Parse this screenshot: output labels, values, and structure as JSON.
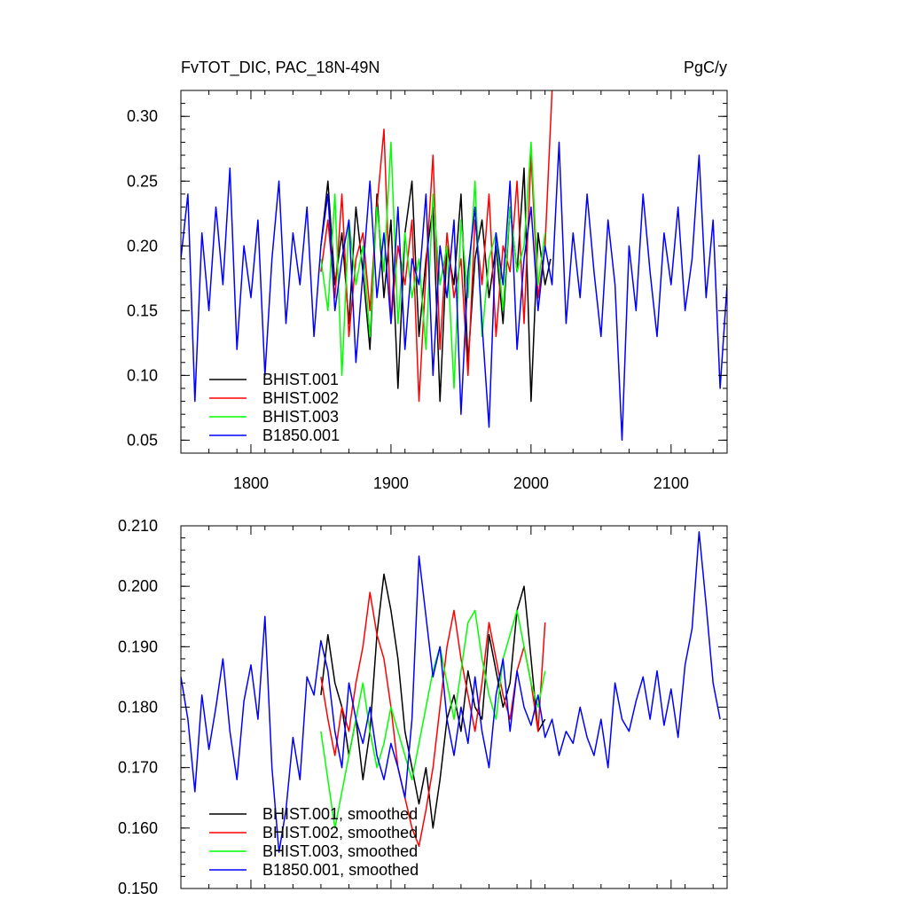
{
  "title_left": "FvTOT_DIC, PAC_18N-49N",
  "title_right": "PgC/y",
  "chart_data": [
    {
      "type": "line",
      "xlim": [
        1750,
        2140
      ],
      "ylim": [
        0.04,
        0.32
      ],
      "xticks": [
        1800,
        1900,
        2000,
        2100
      ],
      "xtick_labels": [
        "1800",
        "1900",
        "2000",
        "2100"
      ],
      "yticks": [
        0.05,
        0.1,
        0.15,
        0.2,
        0.25,
        0.3
      ],
      "ytick_labels": [
        "0.05",
        "0.10",
        "0.15",
        "0.20",
        "0.25",
        "0.30"
      ],
      "legend_position": "bottom-left",
      "series": [
        {
          "name": "BHIST.001",
          "color": "#000000",
          "x": [
            1850,
            1855,
            1860,
            1865,
            1870,
            1875,
            1880,
            1885,
            1890,
            1895,
            1900,
            1905,
            1910,
            1915,
            1920,
            1925,
            1930,
            1935,
            1940,
            1945,
            1950,
            1955,
            1960,
            1965,
            1970,
            1975,
            1980,
            1985,
            1990,
            1995,
            2000,
            2005,
            2010,
            2014
          ],
          "y": [
            0.2,
            0.25,
            0.17,
            0.21,
            0.14,
            0.23,
            0.18,
            0.12,
            0.24,
            0.16,
            0.22,
            0.09,
            0.21,
            0.25,
            0.13,
            0.19,
            0.23,
            0.08,
            0.2,
            0.17,
            0.24,
            0.11,
            0.19,
            0.22,
            0.16,
            0.2,
            0.14,
            0.23,
            0.18,
            0.26,
            0.08,
            0.21,
            0.17,
            0.19
          ]
        },
        {
          "name": "BHIST.002",
          "color": "#ff0000",
          "x": [
            1850,
            1855,
            1860,
            1865,
            1870,
            1875,
            1880,
            1885,
            1890,
            1895,
            1900,
            1905,
            1910,
            1915,
            1920,
            1925,
            1930,
            1935,
            1940,
            1945,
            1950,
            1955,
            1960,
            1965,
            1970,
            1975,
            1980,
            1985,
            1990,
            1995,
            2000,
            2005,
            2010,
            2015
          ],
          "y": [
            0.18,
            0.22,
            0.16,
            0.24,
            0.13,
            0.19,
            0.21,
            0.15,
            0.23,
            0.29,
            0.14,
            0.2,
            0.17,
            0.22,
            0.08,
            0.18,
            0.27,
            0.12,
            0.21,
            0.16,
            0.19,
            0.1,
            0.22,
            0.17,
            0.24,
            0.13,
            0.2,
            0.18,
            0.25,
            0.14,
            0.27,
            0.16,
            0.2,
            0.32
          ]
        },
        {
          "name": "BHIST.003",
          "color": "#00ff00",
          "x": [
            1850,
            1855,
            1860,
            1865,
            1870,
            1875,
            1880,
            1885,
            1890,
            1895,
            1900,
            1905,
            1910,
            1915,
            1920,
            1925,
            1930,
            1935,
            1940,
            1945,
            1950,
            1955,
            1960,
            1965,
            1970,
            1975,
            1980,
            1985,
            1990,
            1995,
            2000,
            2005,
            2010
          ],
          "y": [
            0.19,
            0.15,
            0.24,
            0.1,
            0.22,
            0.17,
            0.2,
            0.13,
            0.23,
            0.18,
            0.28,
            0.14,
            0.21,
            0.16,
            0.19,
            0.12,
            0.24,
            0.17,
            0.2,
            0.09,
            0.22,
            0.16,
            0.25,
            0.13,
            0.19,
            0.21,
            0.15,
            0.23,
            0.18,
            0.2,
            0.28,
            0.17,
            0.21
          ]
        },
        {
          "name": "B1850.001",
          "color": "#0000ff",
          "x": [
            1750,
            1755,
            1760,
            1765,
            1770,
            1775,
            1780,
            1785,
            1790,
            1795,
            1800,
            1805,
            1810,
            1815,
            1820,
            1825,
            1830,
            1835,
            1840,
            1845,
            1850,
            1855,
            1860,
            1865,
            1870,
            1875,
            1880,
            1885,
            1890,
            1895,
            1900,
            1905,
            1910,
            1915,
            1920,
            1925,
            1930,
            1935,
            1940,
            1945,
            1950,
            1955,
            1960,
            1965,
            1970,
            1975,
            1980,
            1985,
            1990,
            1995,
            2000,
            2005,
            2010,
            2015,
            2020,
            2025,
            2030,
            2035,
            2040,
            2045,
            2050,
            2055,
            2060,
            2065,
            2070,
            2075,
            2080,
            2085,
            2090,
            2095,
            2100,
            2105,
            2110,
            2115,
            2120,
            2125,
            2130,
            2135,
            2140
          ],
          "y": [
            0.19,
            0.24,
            0.08,
            0.21,
            0.15,
            0.23,
            0.17,
            0.26,
            0.12,
            0.2,
            0.16,
            0.22,
            0.1,
            0.19,
            0.25,
            0.14,
            0.21,
            0.17,
            0.23,
            0.13,
            0.2,
            0.24,
            0.15,
            0.19,
            0.22,
            0.11,
            0.18,
            0.25,
            0.16,
            0.21,
            0.14,
            0.23,
            0.12,
            0.19,
            0.17,
            0.24,
            0.1,
            0.2,
            0.16,
            0.22,
            0.07,
            0.18,
            0.23,
            0.14,
            0.06,
            0.21,
            0.17,
            0.25,
            0.12,
            0.19,
            0.23,
            0.15,
            0.2,
            0.17,
            0.28,
            0.14,
            0.21,
            0.16,
            0.24,
            0.18,
            0.13,
            0.22,
            0.17,
            0.05,
            0.2,
            0.15,
            0.24,
            0.18,
            0.13,
            0.21,
            0.17,
            0.23,
            0.15,
            0.19,
            0.27,
            0.16,
            0.22,
            0.09,
            0.17
          ]
        }
      ]
    },
    {
      "type": "line",
      "xlim": [
        1750,
        2140
      ],
      "ylim": [
        0.15,
        0.21
      ],
      "xticks": [
        1800,
        1900,
        2000,
        2100
      ],
      "xtick_labels": [],
      "yticks": [
        0.15,
        0.16,
        0.17,
        0.18,
        0.19,
        0.2,
        0.21
      ],
      "ytick_labels": [
        "0.150",
        "0.160",
        "0.170",
        "0.180",
        "0.190",
        "0.200",
        "0.210"
      ],
      "legend_position": "bottom-left",
      "series": [
        {
          "name": "BHIST.001, smoothed",
          "color": "#000000",
          "x": [
            1850,
            1855,
            1860,
            1865,
            1870,
            1875,
            1880,
            1885,
            1890,
            1895,
            1900,
            1905,
            1910,
            1915,
            1920,
            1925,
            1930,
            1935,
            1940,
            1945,
            1950,
            1955,
            1960,
            1965,
            1970,
            1975,
            1980,
            1985,
            1990,
            1995,
            2000,
            2005,
            2010
          ],
          "y": [
            0.182,
            0.192,
            0.184,
            0.18,
            0.172,
            0.178,
            0.168,
            0.176,
            0.192,
            0.202,
            0.196,
            0.188,
            0.176,
            0.17,
            0.164,
            0.17,
            0.16,
            0.168,
            0.178,
            0.182,
            0.176,
            0.186,
            0.18,
            0.178,
            0.192,
            0.186,
            0.18,
            0.184,
            0.196,
            0.2,
            0.188,
            0.176,
            0.178
          ]
        },
        {
          "name": "BHIST.002, smoothed",
          "color": "#ff0000",
          "x": [
            1850,
            1855,
            1860,
            1865,
            1870,
            1875,
            1880,
            1885,
            1890,
            1895,
            1900,
            1905,
            1910,
            1915,
            1920,
            1925,
            1930,
            1935,
            1940,
            1945,
            1950,
            1955,
            1960,
            1965,
            1970,
            1975,
            1980,
            1985,
            1990,
            1995,
            2000,
            2005,
            2010
          ],
          "y": [
            0.185,
            0.178,
            0.172,
            0.18,
            0.176,
            0.184,
            0.19,
            0.199,
            0.192,
            0.188,
            0.18,
            0.17,
            0.165,
            0.16,
            0.157,
            0.163,
            0.17,
            0.18,
            0.19,
            0.196,
            0.188,
            0.182,
            0.176,
            0.184,
            0.194,
            0.188,
            0.182,
            0.178,
            0.186,
            0.19,
            0.184,
            0.176,
            0.194
          ]
        },
        {
          "name": "BHIST.003, smoothed",
          "color": "#00ff00",
          "x": [
            1850,
            1855,
            1860,
            1865,
            1870,
            1875,
            1880,
            1885,
            1890,
            1895,
            1900,
            1905,
            1910,
            1915,
            1920,
            1925,
            1930,
            1935,
            1940,
            1945,
            1950,
            1955,
            1960,
            1965,
            1970,
            1975,
            1980,
            1985,
            1990,
            1995,
            2000,
            2005,
            2010
          ],
          "y": [
            0.176,
            0.168,
            0.16,
            0.166,
            0.172,
            0.178,
            0.184,
            0.176,
            0.17,
            0.174,
            0.18,
            0.176,
            0.172,
            0.168,
            0.174,
            0.18,
            0.186,
            0.19,
            0.184,
            0.178,
            0.186,
            0.194,
            0.196,
            0.188,
            0.182,
            0.178,
            0.188,
            0.192,
            0.196,
            0.19,
            0.184,
            0.18,
            0.186
          ]
        },
        {
          "name": "B1850.001, smoothed",
          "color": "#0000ff",
          "x": [
            1750,
            1755,
            1760,
            1765,
            1770,
            1775,
            1780,
            1785,
            1790,
            1795,
            1800,
            1805,
            1810,
            1815,
            1820,
            1825,
            1830,
            1835,
            1840,
            1845,
            1850,
            1855,
            1860,
            1865,
            1870,
            1875,
            1880,
            1885,
            1890,
            1895,
            1900,
            1905,
            1910,
            1915,
            1920,
            1925,
            1930,
            1935,
            1940,
            1945,
            1950,
            1955,
            1960,
            1965,
            1970,
            1975,
            1980,
            1985,
            1990,
            1995,
            2000,
            2005,
            2010,
            2015,
            2020,
            2025,
            2030,
            2035,
            2040,
            2045,
            2050,
            2055,
            2060,
            2065,
            2070,
            2075,
            2080,
            2085,
            2090,
            2095,
            2100,
            2105,
            2110,
            2115,
            2120,
            2125,
            2130,
            2135
          ],
          "y": [
            0.185,
            0.178,
            0.166,
            0.182,
            0.173,
            0.18,
            0.188,
            0.176,
            0.168,
            0.181,
            0.187,
            0.178,
            0.195,
            0.17,
            0.156,
            0.163,
            0.175,
            0.168,
            0.185,
            0.182,
            0.191,
            0.186,
            0.176,
            0.17,
            0.184,
            0.178,
            0.174,
            0.18,
            0.172,
            0.168,
            0.174,
            0.17,
            0.165,
            0.178,
            0.205,
            0.195,
            0.185,
            0.19,
            0.178,
            0.172,
            0.18,
            0.174,
            0.185,
            0.176,
            0.17,
            0.182,
            0.188,
            0.176,
            0.186,
            0.18,
            0.177,
            0.182,
            0.175,
            0.178,
            0.172,
            0.176,
            0.174,
            0.18,
            0.175,
            0.172,
            0.178,
            0.17,
            0.184,
            0.178,
            0.176,
            0.181,
            0.185,
            0.178,
            0.186,
            0.177,
            0.183,
            0.175,
            0.187,
            0.193,
            0.209,
            0.197,
            0.184,
            0.178
          ]
        }
      ]
    }
  ]
}
